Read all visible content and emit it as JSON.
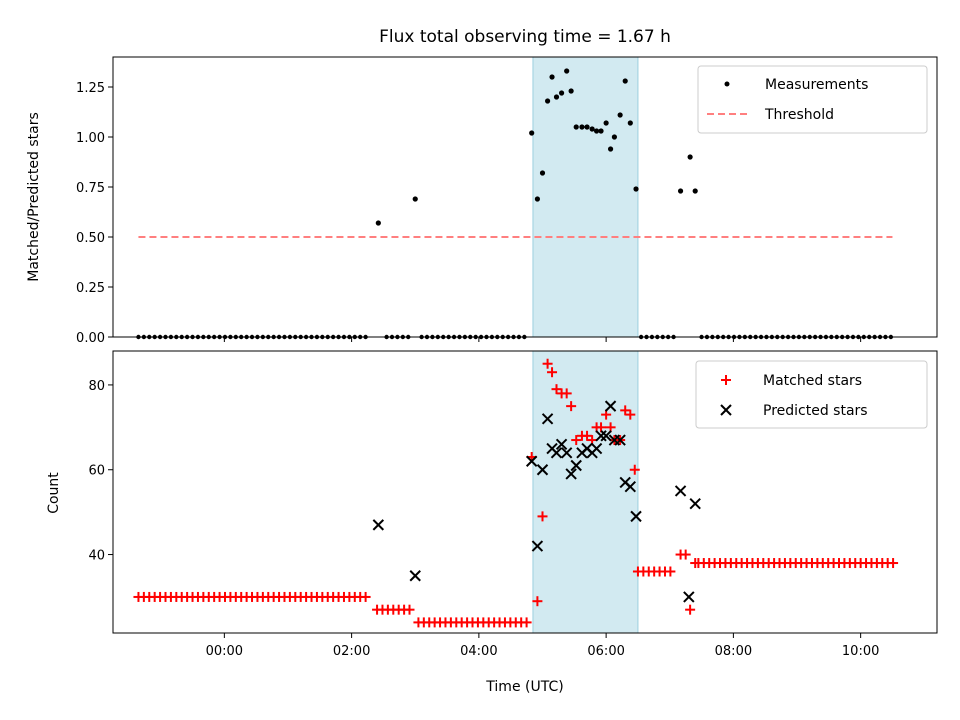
{
  "chart_data": [
    {
      "type": "scatter",
      "title": "Flux total observing time = 1.67 h",
      "xlabel": "",
      "ylabel": "Matched/Predicted stars",
      "ylim": [
        0,
        1.4
      ],
      "yticks": [
        0.0,
        0.25,
        0.5,
        0.75,
        1.0,
        1.25
      ],
      "ytick_labels": [
        "0.00",
        "0.25",
        "0.50",
        "0.75",
        "1.00",
        "1.25"
      ],
      "xlim_hours": [
        -1.75,
        11.2
      ],
      "highlight_span_hours": [
        4.85,
        6.5
      ],
      "highlight_color": "#add8e6",
      "legend_position": "top-right",
      "series": [
        {
          "name": "Measurements",
          "color": "#000000",
          "marker": "dot",
          "points": [
            [
              2.42,
              0.57
            ],
            [
              3.0,
              0.69
            ],
            [
              4.83,
              1.02
            ],
            [
              4.92,
              0.69
            ],
            [
              5.0,
              0.82
            ],
            [
              5.08,
              1.18
            ],
            [
              5.15,
              1.3
            ],
            [
              5.22,
              1.2
            ],
            [
              5.3,
              1.22
            ],
            [
              5.38,
              1.33
            ],
            [
              5.45,
              1.23
            ],
            [
              5.53,
              1.05
            ],
            [
              5.62,
              1.05
            ],
            [
              5.7,
              1.05
            ],
            [
              5.78,
              1.04
            ],
            [
              5.85,
              1.03
            ],
            [
              5.92,
              1.03
            ],
            [
              6.0,
              1.07
            ],
            [
              6.07,
              0.94
            ],
            [
              6.13,
              1.0
            ],
            [
              6.22,
              1.11
            ],
            [
              6.3,
              1.28
            ],
            [
              6.38,
              1.07
            ],
            [
              6.47,
              0.74
            ],
            [
              7.17,
              0.73
            ],
            [
              7.32,
              0.9
            ],
            [
              7.4,
              0.73
            ]
          ],
          "zero_ranges_hours": [
            [
              -1.35,
              2.3
            ],
            [
              2.55,
              2.95
            ],
            [
              3.1,
              4.75
            ],
            [
              6.55,
              7.1
            ],
            [
              7.5,
              10.5
            ]
          ],
          "zero_step_hours": 0.085
        },
        {
          "name": "Threshold",
          "color": "#ff7f7f",
          "style": "dashed-line",
          "x_range_hours": [
            -1.35,
            10.5
          ],
          "value": 0.5
        }
      ]
    },
    {
      "type": "scatter",
      "title": "",
      "xlabel": "Time (UTC)",
      "ylabel": "Count",
      "ylim": [
        21.5,
        88
      ],
      "yticks": [
        40,
        60,
        80
      ],
      "ytick_labels": [
        "40",
        "60",
        "80"
      ],
      "xticks_hours": [
        0,
        2,
        4,
        6,
        8,
        10
      ],
      "xtick_labels": [
        "00:00",
        "02:00",
        "04:00",
        "06:00",
        "08:00",
        "10:00"
      ],
      "xlim_hours": [
        -1.75,
        11.2
      ],
      "highlight_span_hours": [
        4.85,
        6.5
      ],
      "legend_position": "top-right",
      "series": [
        {
          "name": "Matched stars",
          "color": "#ff0000",
          "marker": "plus",
          "points": [
            [
              4.83,
              63
            ],
            [
              4.92,
              29
            ],
            [
              5.0,
              49
            ],
            [
              5.08,
              85
            ],
            [
              5.15,
              83
            ],
            [
              5.22,
              79
            ],
            [
              5.3,
              78
            ],
            [
              5.38,
              78
            ],
            [
              5.45,
              75
            ],
            [
              5.53,
              67
            ],
            [
              5.62,
              68
            ],
            [
              5.7,
              68
            ],
            [
              5.78,
              67
            ],
            [
              5.85,
              70
            ],
            [
              5.92,
              70
            ],
            [
              6.0,
              73
            ],
            [
              6.07,
              70
            ],
            [
              6.13,
              67
            ],
            [
              6.22,
              67
            ],
            [
              6.3,
              74
            ],
            [
              6.38,
              73
            ],
            [
              6.45,
              60
            ],
            [
              7.17,
              40
            ],
            [
              7.25,
              40
            ],
            [
              7.32,
              27
            ],
            [
              7.4,
              38
            ]
          ],
          "flat_runs": [
            {
              "range_hours": [
                -1.35,
                2.3
              ],
              "value": 30
            },
            {
              "range_hours": [
                2.4,
                2.95
              ],
              "value": 27
            },
            {
              "range_hours": [
                3.05,
                4.75
              ],
              "value": 24
            },
            {
              "range_hours": [
                6.5,
                7.05
              ],
              "value": 36
            },
            {
              "range_hours": [
                7.45,
                10.55
              ],
              "value": 38
            }
          ],
          "flat_step_hours": 0.085
        },
        {
          "name": "Predicted stars",
          "color": "#000000",
          "marker": "x",
          "points": [
            [
              2.42,
              47
            ],
            [
              3.0,
              35
            ],
            [
              4.83,
              62
            ],
            [
              4.92,
              42
            ],
            [
              5.0,
              60
            ],
            [
              5.08,
              72
            ],
            [
              5.15,
              65
            ],
            [
              5.22,
              64
            ],
            [
              5.3,
              66
            ],
            [
              5.38,
              64
            ],
            [
              5.45,
              59
            ],
            [
              5.53,
              61
            ],
            [
              5.62,
              64
            ],
            [
              5.7,
              65
            ],
            [
              5.78,
              64
            ],
            [
              5.85,
              65
            ],
            [
              5.92,
              68
            ],
            [
              6.0,
              68
            ],
            [
              6.07,
              75
            ],
            [
              6.13,
              67
            ],
            [
              6.22,
              67
            ],
            [
              6.3,
              57
            ],
            [
              6.38,
              56
            ],
            [
              6.47,
              49
            ],
            [
              7.17,
              55
            ],
            [
              7.3,
              30
            ],
            [
              7.4,
              52
            ]
          ]
        }
      ]
    }
  ]
}
